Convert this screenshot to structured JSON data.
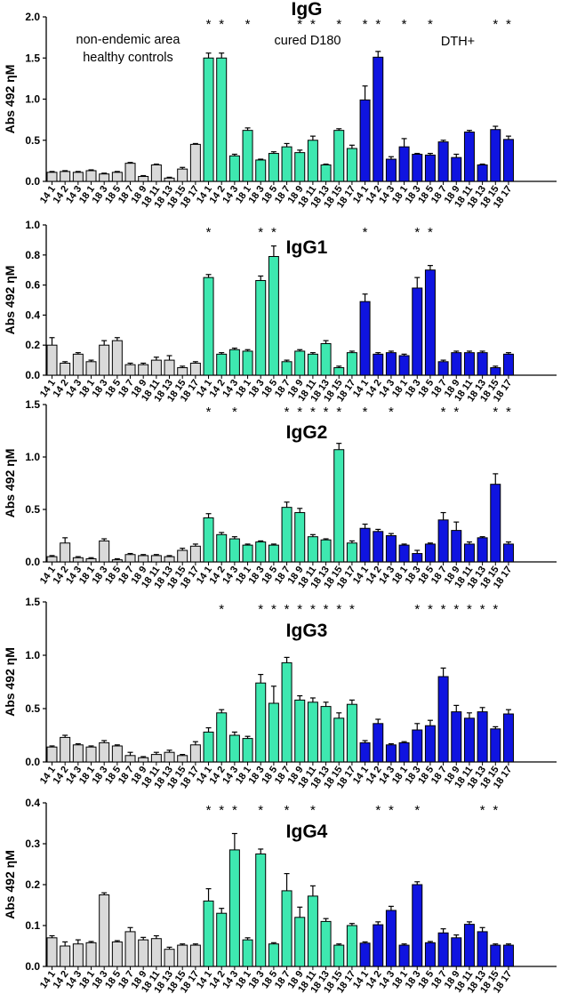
{
  "groups": {
    "control": {
      "label": "non-endemic area\nhealthy controls",
      "color": "#d9d9d9"
    },
    "cured": {
      "label": "cured D180",
      "color": "#3ee8b0"
    },
    "dth": {
      "label": "DTH+",
      "color": "#0f14e0"
    }
  },
  "chart_data": [
    {
      "type": "bar",
      "title": "IgG",
      "ylabel": "Abs 492 ηM",
      "ylim": [
        0,
        2.0
      ],
      "yticks": [
        "0.0",
        "0.5",
        "1.0",
        "1.5",
        "2.0"
      ],
      "categories_control": [
        "14 1",
        "14 2",
        "14 3",
        "18 1",
        "18 3",
        "18 5",
        "18 7",
        "18 9",
        "18 11",
        "18 13",
        "18 15",
        "18 17"
      ],
      "categories_cured": [
        "14 1",
        "14 2",
        "14 3",
        "18 1",
        "18 3",
        "18 5",
        "18 7",
        "18 9",
        "18 11",
        "18 13",
        "18 15",
        "18 17"
      ],
      "categories_dth": [
        "14 1",
        "14 2",
        "14 3",
        "18 1",
        "18 3",
        "18 5",
        "18 7",
        "18 9",
        "18 11",
        "18 13",
        "18 15",
        "18 17"
      ],
      "series": [
        {
          "name": "control",
          "values": [
            0.11,
            0.12,
            0.11,
            0.13,
            0.09,
            0.11,
            0.22,
            0.06,
            0.2,
            0.04,
            0.15,
            0.45
          ],
          "errors": [
            0.01,
            0.01,
            0.01,
            0.01,
            0.01,
            0.01,
            0.01,
            0.01,
            0.01,
            0.01,
            0.02,
            0.01
          ]
        },
        {
          "name": "cured",
          "values": [
            1.5,
            1.5,
            0.31,
            0.62,
            0.26,
            0.34,
            0.42,
            0.35,
            0.5,
            0.2,
            0.62,
            0.4
          ],
          "errors": [
            0.06,
            0.06,
            0.02,
            0.03,
            0.01,
            0.02,
            0.04,
            0.03,
            0.05,
            0.01,
            0.02,
            0.04
          ]
        },
        {
          "name": "dth",
          "values": [
            0.99,
            1.51,
            0.27,
            0.42,
            0.33,
            0.32,
            0.48,
            0.29,
            0.6,
            0.2,
            0.63,
            0.51
          ],
          "errors": [
            0.17,
            0.07,
            0.03,
            0.1,
            0.01,
            0.02,
            0.02,
            0.04,
            0.02,
            0.01,
            0.04,
            0.04
          ]
        }
      ],
      "stars": {
        "cured": [
          0,
          1,
          3,
          7,
          8,
          10
        ],
        "dth": [
          0,
          1,
          3,
          5,
          10,
          11
        ]
      },
      "group_labels": true
    },
    {
      "type": "bar",
      "title": "IgG1",
      "ylabel": "Abs 492 ηM",
      "ylim": [
        0,
        1.0
      ],
      "yticks": [
        "0.0",
        "0.2",
        "0.4",
        "0.6",
        "0.8",
        "1.0"
      ],
      "categories_control": [
        "14 1",
        "14 2",
        "14 3",
        "18 1",
        "18 3",
        "18 5",
        "18 7",
        "18 9",
        "18 11",
        "18 13",
        "18 15",
        "18 17"
      ],
      "categories_cured": [
        "14 1",
        "14 2",
        "14 3",
        "18 1",
        "18 3",
        "18 5",
        "18 7",
        "18 9",
        "18 11",
        "18 13",
        "18 15",
        "18 17"
      ],
      "categories_dth": [
        "14 1",
        "14 2",
        "14 3",
        "18 1",
        "18 3",
        "18 5",
        "18 7",
        "18 9",
        "18 11",
        "18 13",
        "18 15",
        "18 17"
      ],
      "series": [
        {
          "name": "control",
          "values": [
            0.2,
            0.08,
            0.14,
            0.09,
            0.2,
            0.23,
            0.07,
            0.07,
            0.1,
            0.1,
            0.05,
            0.08
          ],
          "errors": [
            0.05,
            0.01,
            0.01,
            0.01,
            0.03,
            0.02,
            0.01,
            0.01,
            0.02,
            0.03,
            0.01,
            0.01
          ]
        },
        {
          "name": "cured",
          "values": [
            0.65,
            0.14,
            0.17,
            0.16,
            0.63,
            0.79,
            0.09,
            0.16,
            0.14,
            0.21,
            0.05,
            0.15
          ],
          "errors": [
            0.02,
            0.01,
            0.01,
            0.01,
            0.03,
            0.07,
            0.01,
            0.01,
            0.01,
            0.02,
            0.01,
            0.01
          ]
        },
        {
          "name": "dth",
          "values": [
            0.49,
            0.14,
            0.15,
            0.13,
            0.58,
            0.7,
            0.09,
            0.15,
            0.15,
            0.15,
            0.05,
            0.14
          ],
          "errors": [
            0.05,
            0.01,
            0.01,
            0.01,
            0.07,
            0.03,
            0.01,
            0.01,
            0.01,
            0.01,
            0.01,
            0.01
          ]
        }
      ],
      "stars": {
        "cured": [
          0,
          4,
          5
        ],
        "dth": [
          0,
          4,
          5
        ]
      },
      "group_labels": false
    },
    {
      "type": "bar",
      "title": "IgG2",
      "ylabel": "Abs 492 ηM",
      "ylim": [
        0,
        1.5
      ],
      "yticks": [
        "0.0",
        "0.5",
        "1.0",
        "1.5"
      ],
      "categories_control": [
        "14 1",
        "14 2",
        "14 3",
        "18 1",
        "18 3",
        "18 5",
        "18 7",
        "18 9",
        "18 11",
        "18 13",
        "18 15",
        "18 17"
      ],
      "categories_cured": [
        "14 1",
        "14 2",
        "14 3",
        "18 1",
        "18 3",
        "18 5",
        "18 7",
        "18 9",
        "18 11",
        "18 13",
        "18 15",
        "18 17"
      ],
      "categories_dth": [
        "14 1",
        "14 2",
        "14 3",
        "18 1",
        "18 3",
        "18 5",
        "18 7",
        "18 9",
        "18 11",
        "18 13",
        "18 15",
        "18 17"
      ],
      "series": [
        {
          "name": "control",
          "values": [
            0.05,
            0.18,
            0.04,
            0.03,
            0.2,
            0.02,
            0.07,
            0.06,
            0.06,
            0.05,
            0.11,
            0.15
          ],
          "errors": [
            0.01,
            0.05,
            0.01,
            0.01,
            0.02,
            0.01,
            0.01,
            0.01,
            0.01,
            0.01,
            0.02,
            0.02
          ]
        },
        {
          "name": "cured",
          "values": [
            0.42,
            0.26,
            0.22,
            0.16,
            0.19,
            0.16,
            0.52,
            0.47,
            0.24,
            0.21,
            1.07,
            0.18
          ],
          "errors": [
            0.04,
            0.02,
            0.02,
            0.01,
            0.01,
            0.01,
            0.05,
            0.04,
            0.02,
            0.01,
            0.06,
            0.02
          ]
        },
        {
          "name": "dth",
          "values": [
            0.32,
            0.29,
            0.25,
            0.16,
            0.08,
            0.17,
            0.4,
            0.3,
            0.17,
            0.23,
            0.74,
            0.17
          ],
          "errors": [
            0.04,
            0.02,
            0.02,
            0.01,
            0.03,
            0.01,
            0.07,
            0.08,
            0.02,
            0.01,
            0.1,
            0.02
          ]
        }
      ],
      "stars": {
        "cured": [
          0,
          2,
          6,
          7,
          8,
          9,
          10
        ],
        "dth": [
          0,
          2,
          6,
          7,
          10,
          11
        ]
      },
      "group_labels": false
    },
    {
      "type": "bar",
      "title": "IgG3",
      "ylabel": "Abs 492 ηM",
      "ylim": [
        0,
        1.5
      ],
      "yticks": [
        "0.0",
        "0.5",
        "1.0",
        "1.5"
      ],
      "categories_control": [
        "14 1",
        "14 2",
        "14 3",
        "18 1",
        "18 3",
        "18 5",
        "18 7",
        "18 9",
        "18 11",
        "18 13",
        "18 15",
        "18 17"
      ],
      "categories_cured": [
        "14 1",
        "14 2",
        "14 3",
        "18 1",
        "18 3",
        "18 5",
        "18 7",
        "18 9",
        "18 11",
        "18 13",
        "18 15",
        "18 17"
      ],
      "categories_dth": [
        "14 1",
        "14 2",
        "14 3",
        "18 1",
        "18 3",
        "18 5",
        "18 7",
        "18 9",
        "18 11",
        "18 13",
        "18 15",
        "18 17"
      ],
      "series": [
        {
          "name": "control",
          "values": [
            0.14,
            0.23,
            0.16,
            0.14,
            0.18,
            0.15,
            0.06,
            0.04,
            0.07,
            0.09,
            0.06,
            0.16
          ],
          "errors": [
            0.01,
            0.02,
            0.01,
            0.01,
            0.02,
            0.01,
            0.03,
            0.01,
            0.02,
            0.02,
            0.01,
            0.03
          ]
        },
        {
          "name": "cured",
          "values": [
            0.28,
            0.46,
            0.25,
            0.22,
            0.74,
            0.55,
            0.93,
            0.58,
            0.56,
            0.52,
            0.41,
            0.54
          ],
          "errors": [
            0.04,
            0.03,
            0.03,
            0.02,
            0.08,
            0.16,
            0.05,
            0.04,
            0.04,
            0.04,
            0.05,
            0.04
          ]
        },
        {
          "name": "dth",
          "values": [
            0.18,
            0.36,
            0.16,
            0.18,
            0.3,
            0.34,
            0.8,
            0.47,
            0.41,
            0.47,
            0.31,
            0.45
          ],
          "errors": [
            0.02,
            0.04,
            0.01,
            0.01,
            0.06,
            0.05,
            0.08,
            0.06,
            0.05,
            0.04,
            0.02,
            0.04
          ]
        }
      ],
      "stars": {
        "cured": [
          1,
          4,
          5,
          6,
          7,
          8,
          9,
          10,
          11
        ],
        "dth": [
          4,
          5,
          6,
          7,
          8,
          9,
          10
        ]
      },
      "group_labels": false
    },
    {
      "type": "bar",
      "title": "IgG4",
      "ylabel": "Abs 492 ηM",
      "ylim": [
        0,
        0.4
      ],
      "yticks": [
        "0.0",
        "0.1",
        "0.2",
        "0.3",
        "0.4"
      ],
      "categories_control": [
        "14 1",
        "14 2",
        "14 3",
        "18 1",
        "18 3",
        "18 5",
        "18 7",
        "18 9",
        "18 11",
        "18 13",
        "18 15",
        "18 17"
      ],
      "categories_cured": [
        "14 1",
        "14 2",
        "14 3",
        "18 1",
        "18 3",
        "18 5",
        "18 7",
        "18 9",
        "18 11",
        "18 13",
        "18 15",
        "18 17"
      ],
      "categories_dth": [
        "14 1",
        "14 2",
        "14 3",
        "18 1",
        "18 3",
        "18 5",
        "18 7",
        "18 9",
        "18 11",
        "18 13",
        "18 15",
        "18 17"
      ],
      "series": [
        {
          "name": "control",
          "values": [
            0.07,
            0.05,
            0.055,
            0.058,
            0.175,
            0.06,
            0.085,
            0.065,
            0.068,
            0.042,
            0.052,
            0.052
          ],
          "errors": [
            0.005,
            0.01,
            0.01,
            0.003,
            0.005,
            0.003,
            0.01,
            0.006,
            0.007,
            0.005,
            0.003,
            0.003
          ]
        },
        {
          "name": "cured",
          "values": [
            0.16,
            0.13,
            0.285,
            0.065,
            0.275,
            0.055,
            0.185,
            0.12,
            0.172,
            0.11,
            0.052,
            0.1
          ],
          "errors": [
            0.03,
            0.012,
            0.04,
            0.005,
            0.012,
            0.003,
            0.042,
            0.025,
            0.025,
            0.007,
            0.003,
            0.005
          ]
        },
        {
          "name": "dth",
          "values": [
            0.057,
            0.102,
            0.137,
            0.052,
            0.2,
            0.058,
            0.082,
            0.07,
            0.103,
            0.085,
            0.052,
            0.052
          ],
          "errors": [
            0.003,
            0.007,
            0.01,
            0.003,
            0.007,
            0.003,
            0.01,
            0.007,
            0.006,
            0.01,
            0.003,
            0.003
          ]
        }
      ],
      "stars": {
        "cured": [
          0,
          1,
          2,
          4,
          6,
          8
        ],
        "dth": [
          1,
          2,
          4,
          9,
          10
        ]
      },
      "group_labels": false
    }
  ]
}
